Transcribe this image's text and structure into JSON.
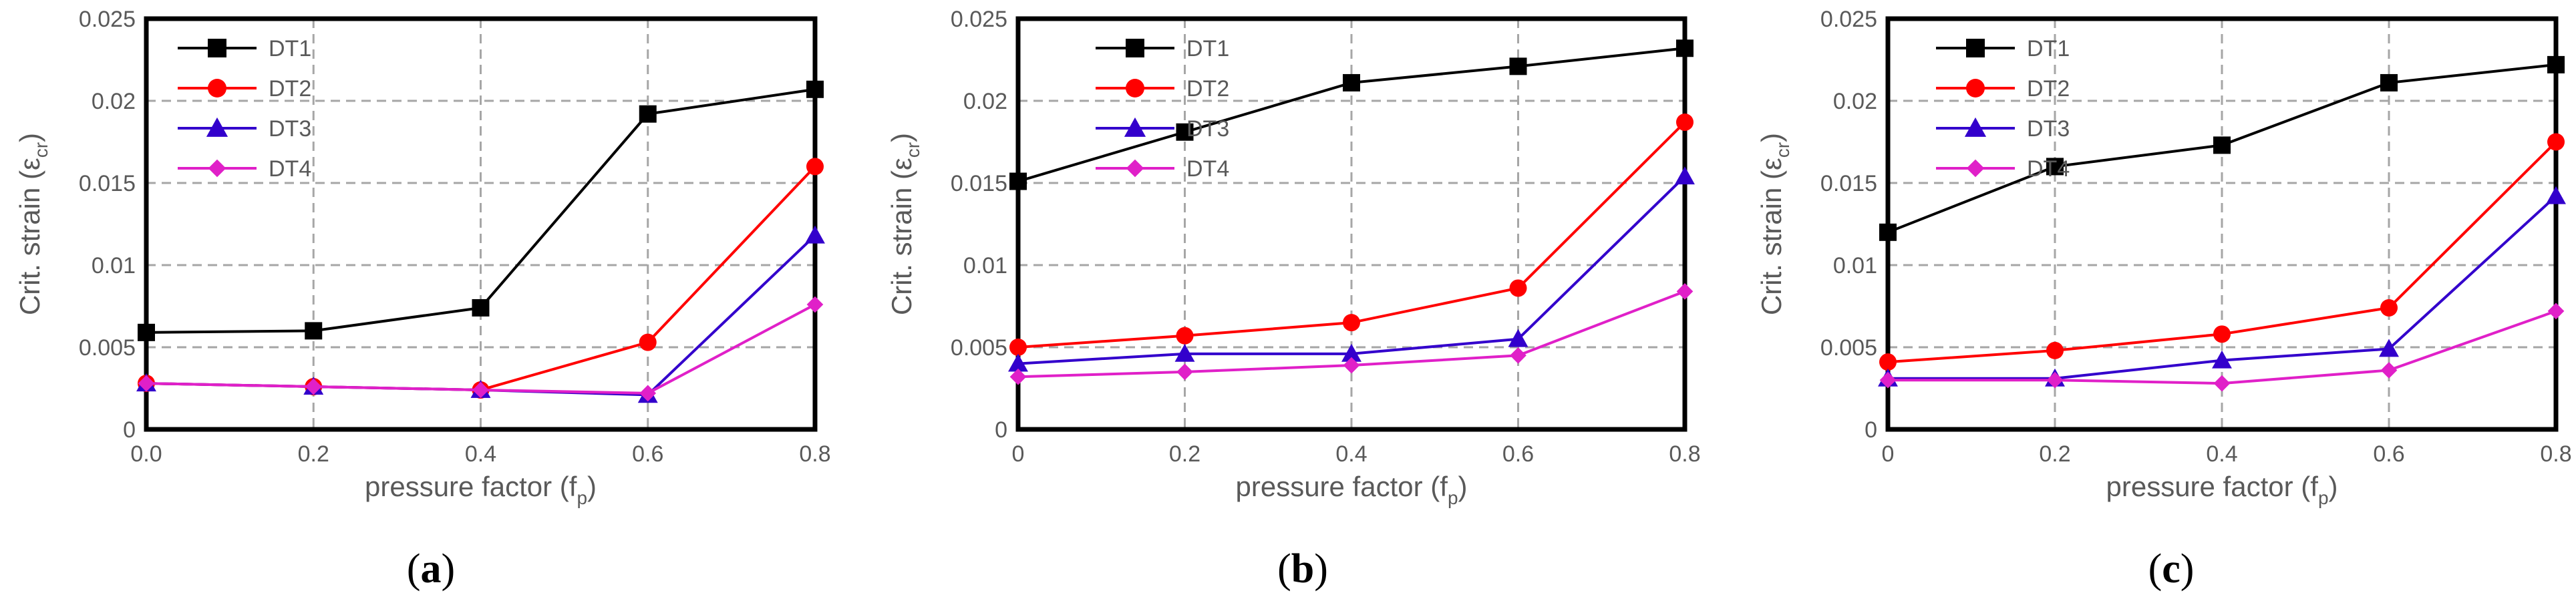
{
  "chart_data": [
    {
      "type": "line",
      "panel_label": "a",
      "x": [
        0.0,
        0.2,
        0.4,
        0.6,
        0.8
      ],
      "xticks": [
        "0.0",
        "0.2",
        "0.4",
        "0.6",
        "0.8"
      ],
      "xlim": [
        0,
        0.8
      ],
      "ylim": [
        0,
        0.025
      ],
      "yticks": [
        "0",
        "0.005",
        "0.01",
        "0.015",
        "0.02",
        "0.025"
      ],
      "xlabel": "pressure factor (f",
      "xlabel_sub": "p",
      "xlabel_close": ")",
      "ylabel": "Crit. strain (ε",
      "ylabel_sub": "cr",
      "ylabel_close": ")",
      "grid": true,
      "legend": "top-left",
      "series": [
        {
          "name": "DT1",
          "color": "#000000",
          "marker": "square",
          "values": [
            0.0059,
            0.006,
            0.0074,
            0.0192,
            0.0207
          ]
        },
        {
          "name": "DT2",
          "color": "#ff0000",
          "marker": "circle",
          "values": [
            0.0028,
            0.0026,
            0.0024,
            0.0053,
            0.016
          ]
        },
        {
          "name": "DT3",
          "color": "#3300cc",
          "marker": "triangle",
          "values": [
            0.0028,
            0.0026,
            0.0024,
            0.0021,
            0.0118
          ]
        },
        {
          "name": "DT4",
          "color": "#e020c8",
          "marker": "diamond",
          "values": [
            0.0028,
            0.0026,
            0.0024,
            0.0022,
            0.0076
          ]
        }
      ]
    },
    {
      "type": "line",
      "panel_label": "b",
      "x": [
        0.0,
        0.2,
        0.4,
        0.6,
        0.8
      ],
      "xticks": [
        "0",
        "0.2",
        "0.4",
        "0.6",
        "0.8"
      ],
      "xlim": [
        0,
        0.8
      ],
      "ylim": [
        0,
        0.025
      ],
      "yticks": [
        "0",
        "0.005",
        "0.01",
        "0.015",
        "0.02",
        "0.025"
      ],
      "xlabel": "pressure factor (f",
      "xlabel_sub": "p",
      "xlabel_close": ")",
      "ylabel": "Crit. strain (ε",
      "ylabel_sub": "cr",
      "ylabel_close": ")",
      "grid": true,
      "legend": "top-left",
      "series": [
        {
          "name": "DT1",
          "color": "#000000",
          "marker": "square",
          "values": [
            0.0151,
            0.0181,
            0.0211,
            0.0221,
            0.0232
          ]
        },
        {
          "name": "DT2",
          "color": "#ff0000",
          "marker": "circle",
          "values": [
            0.005,
            0.0057,
            0.0065,
            0.0086,
            0.0187
          ]
        },
        {
          "name": "DT3",
          "color": "#3300cc",
          "marker": "triangle",
          "values": [
            0.004,
            0.0046,
            0.0046,
            0.0055,
            0.0154
          ]
        },
        {
          "name": "DT4",
          "color": "#e020c8",
          "marker": "diamond",
          "values": [
            0.0032,
            0.0035,
            0.0039,
            0.0045,
            0.0084
          ]
        }
      ]
    },
    {
      "type": "line",
      "panel_label": "c",
      "x": [
        0.0,
        0.2,
        0.4,
        0.6,
        0.8
      ],
      "xticks": [
        "0",
        "0.2",
        "0.4",
        "0.6",
        "0.8"
      ],
      "xlim": [
        0,
        0.8
      ],
      "ylim": [
        0,
        0.025
      ],
      "yticks": [
        "0",
        "0.005",
        "0.01",
        "0.015",
        "0.02",
        "0.025"
      ],
      "xlabel": "pressure factor (f",
      "xlabel_sub": "p",
      "xlabel_close": ")",
      "ylabel": "Crit. strain (ε",
      "ylabel_sub": "cr",
      "ylabel_close": ")",
      "grid": true,
      "legend": "top-left",
      "series": [
        {
          "name": "DT1",
          "color": "#000000",
          "marker": "square",
          "values": [
            0.012,
            0.016,
            0.0173,
            0.0211,
            0.0222
          ]
        },
        {
          "name": "DT2",
          "color": "#ff0000",
          "marker": "circle",
          "values": [
            0.0041,
            0.0048,
            0.0058,
            0.0074,
            0.0175
          ]
        },
        {
          "name": "DT3",
          "color": "#3300cc",
          "marker": "triangle",
          "values": [
            0.0031,
            0.0031,
            0.0042,
            0.0049,
            0.0142
          ]
        },
        {
          "name": "DT4",
          "color": "#e020c8",
          "marker": "diamond",
          "values": [
            0.003,
            0.003,
            0.0028,
            0.0036,
            0.0072
          ]
        }
      ]
    }
  ]
}
